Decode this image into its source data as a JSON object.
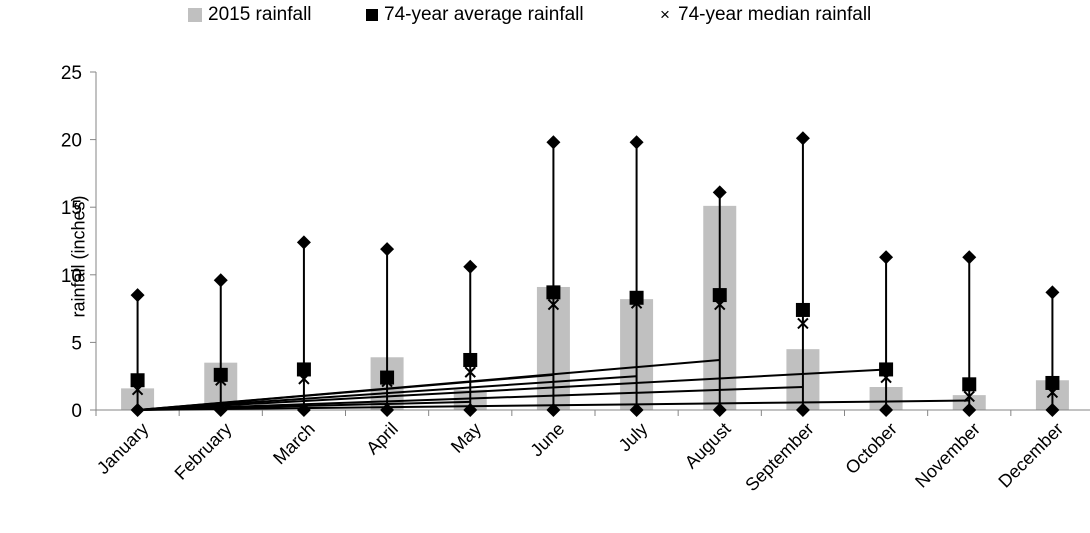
{
  "legend": {
    "bar_label": "2015 rainfall",
    "avg_label": "74-year average rainfall",
    "median_label": "74-year median rainfall"
  },
  "colors": {
    "bar": "#c0c0c0",
    "markers": "#000000",
    "axis": "#868686"
  },
  "chart_data": {
    "type": "bar",
    "title": "",
    "xlabel": "",
    "ylabel": "rainfall (inches)",
    "ylim": [
      0,
      25
    ],
    "yticks": [
      0,
      5,
      10,
      15,
      20,
      25
    ],
    "grid": false,
    "legend_position": "top",
    "categories": [
      "January",
      "February",
      "March",
      "April",
      "May",
      "June",
      "July",
      "August",
      "September",
      "October",
      "November",
      "December"
    ],
    "series": [
      {
        "name": "2015 rainfall",
        "kind": "bar",
        "values": [
          1.6,
          3.5,
          0.0,
          3.9,
          1.5,
          9.1,
          8.2,
          15.1,
          4.5,
          1.7,
          1.1,
          2.2
        ]
      },
      {
        "name": "74-year average rainfall",
        "kind": "marker-square",
        "values": [
          2.2,
          2.6,
          3.0,
          2.4,
          3.7,
          8.7,
          8.3,
          8.5,
          7.4,
          3.0,
          1.9,
          2.0
        ]
      },
      {
        "name": "74-year median rainfall",
        "kind": "marker-cross",
        "values": [
          1.5,
          2.2,
          2.3,
          2.1,
          2.8,
          7.8,
          7.9,
          7.8,
          6.4,
          2.4,
          1.0,
          1.3
        ]
      },
      {
        "kind": "range-max",
        "values": [
          8.5,
          9.6,
          12.4,
          11.9,
          10.6,
          19.8,
          19.8,
          16.1,
          20.1,
          11.3,
          11.3,
          8.7
        ]
      },
      {
        "kind": "range-min",
        "values": [
          0,
          0,
          0,
          0,
          0,
          0,
          0,
          0,
          0,
          0,
          0,
          0
        ]
      }
    ],
    "connector_lines": [
      {
        "from": "January",
        "to": "May",
        "to_value": 0.6
      },
      {
        "from": "January",
        "to": "June",
        "to_value": 2.6
      },
      {
        "from": "January",
        "to": "July",
        "to_value": 2.5
      },
      {
        "from": "January",
        "to": "August",
        "to_value": 3.7
      },
      {
        "from": "January",
        "to": "September",
        "to_value": 1.7
      },
      {
        "from": "January",
        "to": "October",
        "to_value": 3.0
      },
      {
        "from": "January",
        "to": "November",
        "to_value": 0.7
      }
    ]
  }
}
